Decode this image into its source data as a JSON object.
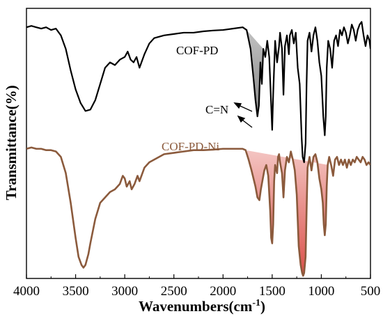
{
  "chart_data": {
    "type": "line",
    "xlabel": "Wavenumbers(cm",
    "xlabel_sup": "-1",
    "xlabel_close": ")",
    "ylabel": "Transmittance(%)",
    "xlim": [
      4000,
      500
    ],
    "x_reversed": true,
    "xticks": [
      "4000",
      "3500",
      "3000",
      "2500",
      "2000",
      "1500",
      "1000",
      "500"
    ],
    "yticks_shown": false,
    "grid": false,
    "legend": "none",
    "annotations": [
      {
        "text": "COF-PD",
        "color": "#000000",
        "x": 2200
      },
      {
        "text": "COF-PD-Ni",
        "color": "#8b5a3c",
        "x": 2150
      },
      {
        "text": "C=N",
        "color": "#000000",
        "x": 1700
      }
    ],
    "series": [
      {
        "color": "#000000",
        "points": [
          [
            4000,
            0.93
          ],
          [
            3950,
            0.935
          ],
          [
            3900,
            0.93
          ],
          [
            3850,
            0.925
          ],
          [
            3800,
            0.93
          ],
          [
            3750,
            0.92
          ],
          [
            3700,
            0.925
          ],
          [
            3650,
            0.9
          ],
          [
            3600,
            0.85
          ],
          [
            3550,
            0.77
          ],
          [
            3500,
            0.7
          ],
          [
            3450,
            0.65
          ],
          [
            3400,
            0.62
          ],
          [
            3350,
            0.625
          ],
          [
            3300,
            0.66
          ],
          [
            3250,
            0.72
          ],
          [
            3200,
            0.78
          ],
          [
            3150,
            0.8
          ],
          [
            3100,
            0.79
          ],
          [
            3050,
            0.81
          ],
          [
            3000,
            0.82
          ],
          [
            2970,
            0.84
          ],
          [
            2940,
            0.81
          ],
          [
            2910,
            0.8
          ],
          [
            2880,
            0.82
          ],
          [
            2850,
            0.78
          ],
          [
            2800,
            0.83
          ],
          [
            2750,
            0.87
          ],
          [
            2700,
            0.89
          ],
          [
            2600,
            0.9
          ],
          [
            2500,
            0.905
          ],
          [
            2400,
            0.91
          ],
          [
            2300,
            0.91
          ],
          [
            2200,
            0.915
          ],
          [
            2100,
            0.918
          ],
          [
            2000,
            0.92
          ],
          [
            1900,
            0.925
          ],
          [
            1800,
            0.93
          ],
          [
            1760,
            0.92
          ],
          [
            1720,
            0.85
          ],
          [
            1690,
            0.74
          ],
          [
            1670,
            0.66
          ],
          [
            1650,
            0.6
          ],
          [
            1635,
            0.64
          ],
          [
            1620,
            0.8
          ],
          [
            1605,
            0.72
          ],
          [
            1590,
            0.85
          ],
          [
            1570,
            0.82
          ],
          [
            1550,
            0.88
          ],
          [
            1530,
            0.82
          ],
          [
            1510,
            0.64
          ],
          [
            1500,
            0.55
          ],
          [
            1490,
            0.68
          ],
          [
            1470,
            0.88
          ],
          [
            1450,
            0.8
          ],
          [
            1430,
            0.86
          ],
          [
            1420,
            0.91
          ],
          [
            1400,
            0.85
          ],
          [
            1385,
            0.68
          ],
          [
            1370,
            0.86
          ],
          [
            1350,
            0.9
          ],
          [
            1330,
            0.83
          ],
          [
            1320,
            0.9
          ],
          [
            1300,
            0.92
          ],
          [
            1280,
            0.87
          ],
          [
            1260,
            0.91
          ],
          [
            1240,
            0.78
          ],
          [
            1220,
            0.72
          ],
          [
            1200,
            0.52
          ],
          [
            1190,
            0.45
          ],
          [
            1175,
            0.43
          ],
          [
            1160,
            0.5
          ],
          [
            1150,
            0.72
          ],
          [
            1140,
            0.88
          ],
          [
            1120,
            0.91
          ],
          [
            1100,
            0.84
          ],
          [
            1080,
            0.9
          ],
          [
            1060,
            0.93
          ],
          [
            1040,
            0.88
          ],
          [
            1020,
            0.8
          ],
          [
            1000,
            0.75
          ],
          [
            980,
            0.6
          ],
          [
            965,
            0.53
          ],
          [
            955,
            0.6
          ],
          [
            945,
            0.78
          ],
          [
            930,
            0.88
          ],
          [
            910,
            0.85
          ],
          [
            890,
            0.78
          ],
          [
            870,
            0.88
          ],
          [
            850,
            0.9
          ],
          [
            830,
            0.86
          ],
          [
            810,
            0.92
          ],
          [
            790,
            0.9
          ],
          [
            770,
            0.93
          ],
          [
            750,
            0.91
          ],
          [
            730,
            0.87
          ],
          [
            710,
            0.9
          ],
          [
            690,
            0.94
          ],
          [
            670,
            0.92
          ],
          [
            650,
            0.88
          ],
          [
            630,
            0.92
          ],
          [
            610,
            0.94
          ],
          [
            590,
            0.95
          ],
          [
            570,
            0.9
          ],
          [
            550,
            0.86
          ],
          [
            530,
            0.9
          ],
          [
            510,
            0.88
          ],
          [
            500,
            0.85
          ]
        ]
      },
      {
        "color": "#8b5a3c",
        "points": [
          [
            4000,
            0.48
          ],
          [
            3950,
            0.485
          ],
          [
            3900,
            0.48
          ],
          [
            3850,
            0.48
          ],
          [
            3800,
            0.475
          ],
          [
            3750,
            0.475
          ],
          [
            3700,
            0.47
          ],
          [
            3650,
            0.45
          ],
          [
            3600,
            0.39
          ],
          [
            3550,
            0.28
          ],
          [
            3500,
            0.15
          ],
          [
            3470,
            0.08
          ],
          [
            3440,
            0.05
          ],
          [
            3420,
            0.04
          ],
          [
            3400,
            0.05
          ],
          [
            3370,
            0.09
          ],
          [
            3350,
            0.13
          ],
          [
            3300,
            0.22
          ],
          [
            3250,
            0.28
          ],
          [
            3200,
            0.3
          ],
          [
            3150,
            0.32
          ],
          [
            3100,
            0.33
          ],
          [
            3050,
            0.35
          ],
          [
            3020,
            0.38
          ],
          [
            3000,
            0.37
          ],
          [
            2980,
            0.34
          ],
          [
            2950,
            0.36
          ],
          [
            2930,
            0.33
          ],
          [
            2900,
            0.35
          ],
          [
            2870,
            0.38
          ],
          [
            2850,
            0.36
          ],
          [
            2800,
            0.41
          ],
          [
            2750,
            0.43
          ],
          [
            2700,
            0.44
          ],
          [
            2600,
            0.46
          ],
          [
            2500,
            0.465
          ],
          [
            2400,
            0.47
          ],
          [
            2300,
            0.475
          ],
          [
            2200,
            0.475
          ],
          [
            2100,
            0.477
          ],
          [
            2000,
            0.48
          ],
          [
            1900,
            0.48
          ],
          [
            1800,
            0.48
          ],
          [
            1770,
            0.475
          ],
          [
            1740,
            0.44
          ],
          [
            1710,
            0.4
          ],
          [
            1690,
            0.37
          ],
          [
            1670,
            0.34
          ],
          [
            1650,
            0.3
          ],
          [
            1630,
            0.29
          ],
          [
            1615,
            0.33
          ],
          [
            1600,
            0.36
          ],
          [
            1580,
            0.4
          ],
          [
            1560,
            0.42
          ],
          [
            1540,
            0.38
          ],
          [
            1520,
            0.25
          ],
          [
            1510,
            0.15
          ],
          [
            1500,
            0.13
          ],
          [
            1490,
            0.2
          ],
          [
            1480,
            0.36
          ],
          [
            1470,
            0.42
          ],
          [
            1450,
            0.39
          ],
          [
            1440,
            0.45
          ],
          [
            1430,
            0.46
          ],
          [
            1420,
            0.43
          ],
          [
            1400,
            0.39
          ],
          [
            1385,
            0.3
          ],
          [
            1370,
            0.4
          ],
          [
            1350,
            0.45
          ],
          [
            1330,
            0.43
          ],
          [
            1310,
            0.47
          ],
          [
            1290,
            0.44
          ],
          [
            1270,
            0.4
          ],
          [
            1250,
            0.31
          ],
          [
            1230,
            0.12
          ],
          [
            1210,
            0.05
          ],
          [
            1195,
            0.02
          ],
          [
            1185,
            0.01
          ],
          [
            1175,
            0.02
          ],
          [
            1160,
            0.08
          ],
          [
            1150,
            0.25
          ],
          [
            1140,
            0.41
          ],
          [
            1120,
            0.45
          ],
          [
            1100,
            0.4
          ],
          [
            1080,
            0.45
          ],
          [
            1060,
            0.46
          ],
          [
            1040,
            0.43
          ],
          [
            1020,
            0.37
          ],
          [
            1000,
            0.33
          ],
          [
            985,
            0.28
          ],
          [
            975,
            0.2
          ],
          [
            965,
            0.16
          ],
          [
            955,
            0.2
          ],
          [
            945,
            0.34
          ],
          [
            935,
            0.42
          ],
          [
            920,
            0.45
          ],
          [
            900,
            0.42
          ],
          [
            880,
            0.38
          ],
          [
            860,
            0.44
          ],
          [
            840,
            0.45
          ],
          [
            820,
            0.42
          ],
          [
            800,
            0.44
          ],
          [
            780,
            0.42
          ],
          [
            760,
            0.44
          ],
          [
            740,
            0.41
          ],
          [
            720,
            0.44
          ],
          [
            700,
            0.42
          ],
          [
            680,
            0.44
          ],
          [
            660,
            0.43
          ],
          [
            640,
            0.45
          ],
          [
            620,
            0.44
          ],
          [
            600,
            0.43
          ],
          [
            580,
            0.45
          ],
          [
            560,
            0.44
          ],
          [
            540,
            0.42
          ],
          [
            520,
            0.43
          ],
          [
            500,
            0.42
          ]
        ]
      }
    ]
  }
}
